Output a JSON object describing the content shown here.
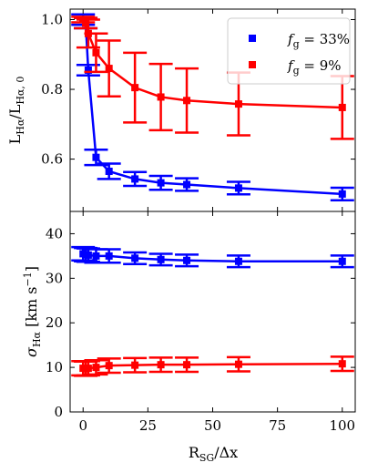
{
  "chart_data": [
    {
      "type": "line",
      "panel": "top",
      "ylabel": "L_Hα / L_Hα,0",
      "ylabel_parts": {
        "main": "L",
        "sub1": "Hα",
        "slash": "/L",
        "sub2": "Hα, 0"
      },
      "xlim": [
        -5,
        105
      ],
      "ylim": [
        0.45,
        1.03
      ],
      "yticks": [
        0.6,
        0.8,
        1.0
      ],
      "yticklabels": [
        "0.6",
        "0.8",
        "1.0"
      ],
      "legend_position": "top-right",
      "series": [
        {
          "name": "f_g = 33%",
          "legend_label": {
            "italic": "f",
            "sub": "g",
            "rest": " = 33%"
          },
          "color": "#0000ff",
          "x": [
            0,
            1,
            2,
            5,
            10,
            20,
            30,
            40,
            60,
            100
          ],
          "y": [
            1.0,
            0.99,
            0.855,
            0.605,
            0.565,
            0.543,
            0.532,
            0.527,
            0.517,
            0.5
          ],
          "err": [
            0.015,
            0.015,
            0.015,
            0.022,
            0.022,
            0.02,
            0.02,
            0.018,
            0.018,
            0.018
          ]
        },
        {
          "name": "f_g = 9%",
          "legend_label": {
            "italic": "f",
            "sub": "g",
            "rest": " = 9%"
          },
          "color": "#ff0000",
          "x": [
            0,
            1,
            2,
            5,
            10,
            20,
            30,
            40,
            60,
            100
          ],
          "y": [
            1.0,
            0.99,
            0.96,
            0.905,
            0.86,
            0.805,
            0.778,
            0.768,
            0.758,
            0.748
          ],
          "err": [
            0.008,
            0.015,
            0.04,
            0.055,
            0.08,
            0.1,
            0.095,
            0.092,
            0.09,
            0.09
          ]
        }
      ]
    },
    {
      "type": "line",
      "panel": "bottom",
      "ylabel": "σ_Hα [km s⁻¹]",
      "ylabel_parts": {
        "sigma": "σ",
        "sub": "Hα",
        "unit": " [km s",
        "sup": "−1",
        "close": "]"
      },
      "xlabel": "R_SG/Δx",
      "xlabel_parts": {
        "main": "R",
        "sub": "SG",
        "rest": "/Δx"
      },
      "xlim": [
        -5,
        105
      ],
      "ylim": [
        0,
        45
      ],
      "xticks": [
        0,
        25,
        50,
        75,
        100
      ],
      "xticklabels": [
        "0",
        "25",
        "50",
        "75",
        "100"
      ],
      "yticks": [
        0,
        10,
        20,
        30,
        40
      ],
      "yticklabels": [
        "0",
        "10",
        "20",
        "30",
        "40"
      ],
      "series": [
        {
          "name": "f_g = 33%",
          "color": "#0000ff",
          "x": [
            0,
            1,
            2,
            5,
            10,
            20,
            30,
            40,
            60,
            100
          ],
          "y": [
            35.5,
            35.3,
            35.2,
            35.0,
            35.0,
            34.5,
            34.2,
            34.0,
            33.8,
            33.8
          ],
          "err": [
            1.5,
            1.5,
            1.5,
            1.5,
            1.5,
            1.3,
            1.3,
            1.3,
            1.3,
            1.3
          ]
        },
        {
          "name": "f_g = 9%",
          "color": "#ff0000",
          "x": [
            0,
            1,
            2,
            5,
            10,
            20,
            30,
            40,
            60,
            100
          ],
          "y": [
            9.8,
            9.7,
            9.8,
            10.0,
            10.4,
            10.5,
            10.6,
            10.6,
            10.7,
            10.8
          ],
          "err": [
            1.6,
            1.6,
            1.6,
            1.6,
            1.6,
            1.6,
            1.6,
            1.6,
            1.6,
            1.6
          ]
        }
      ]
    }
  ]
}
